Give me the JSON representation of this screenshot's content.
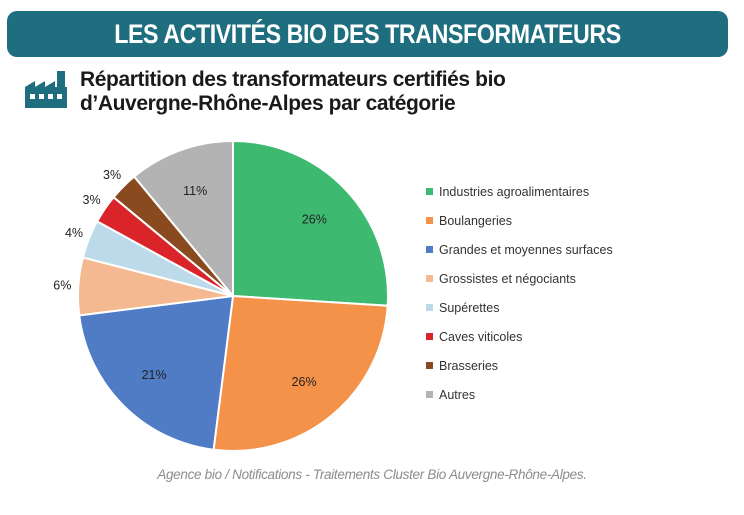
{
  "header": {
    "title": "LES ACTIVITÉS BIO DES TRANSFORMATEURS"
  },
  "icon": "factory-icon",
  "subtitle": {
    "line1": "Répartition des transformateurs certifiés bio",
    "line2": "d’Auvergne-Rhône-Alpes par catégorie"
  },
  "chart_data": {
    "type": "pie",
    "slices": [
      {
        "label": "Industries agroalimentaires",
        "value": 26,
        "display": "26%",
        "color": "#3dba6f"
      },
      {
        "label": "Boulangeries",
        "value": 26,
        "display": "26%",
        "color": "#f4924a"
      },
      {
        "label": "Grandes et moyennes surfaces",
        "value": 21,
        "display": "21%",
        "color": "#4f7cc4"
      },
      {
        "label": "Grossistes et négociants",
        "value": 6,
        "display": "6%",
        "color": "#f4b991"
      },
      {
        "label": "Supérettes",
        "value": 4,
        "display": "4%",
        "color": "#bcdaea"
      },
      {
        "label": "Caves viticoles",
        "value": 3,
        "display": "3%",
        "color": "#d9242a"
      },
      {
        "label": "Brasseries",
        "value": 3,
        "display": "3%",
        "color": "#8a4a20"
      },
      {
        "label": "Autres",
        "value": 11,
        "display": "11%",
        "color": "#b3b3b3"
      }
    ],
    "legend_position": "right"
  },
  "source": "Agence bio / Notifications - Traitements Cluster Bio Auvergne-Rhône-Alpes."
}
